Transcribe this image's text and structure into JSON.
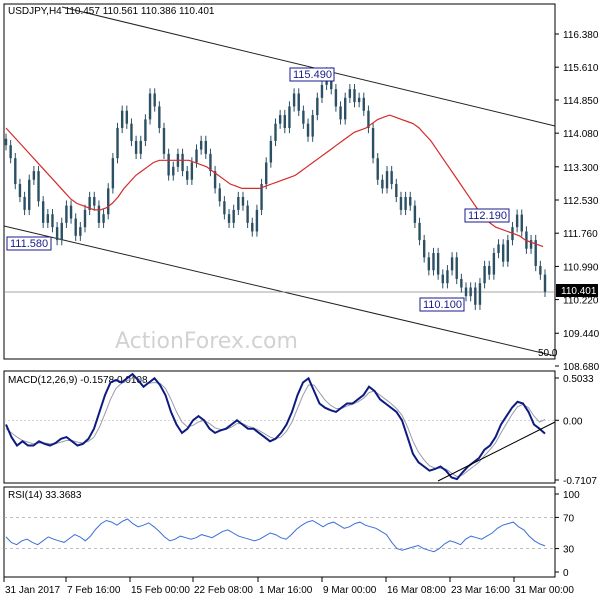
{
  "chart_data": [
    {
      "type": "candlestick",
      "header": "USDJPY,H4  110.457 110.561 110.386 110.401",
      "watermark": "ActionForex.com",
      "ylim": [
        108.68,
        117.0
      ],
      "y_ticks": [
        "116.380",
        "115.610",
        "114.850",
        "114.080",
        "113.300",
        "112.530",
        "111.760",
        "110.990",
        "110.220",
        "109.440",
        "108.680"
      ],
      "x_ticks": [
        "31 Jan 2017",
        "7 Feb 16:00",
        "15 Feb 00:00",
        "22 Feb 08:00",
        "1 Mar 16:00",
        "9 Mar 00:00",
        "16 Mar 08:00",
        "23 Mar 16:00",
        "31 Mar 00:00"
      ],
      "last_price_label": "110.401",
      "annotations": [
        "115.490",
        "112.190",
        "111.580",
        "110.100",
        "50.0"
      ],
      "series": [
        {
          "name": "close",
          "values": [
            113.8,
            113.5,
            112.9,
            112.6,
            112.3,
            113.0,
            113.2,
            112.5,
            112.0,
            112.2,
            111.9,
            111.6,
            112.0,
            112.4,
            112.1,
            111.7,
            111.9,
            112.3,
            112.6,
            112.4,
            112.0,
            112.2,
            112.8,
            113.5,
            114.2,
            114.6,
            114.3,
            113.9,
            113.6,
            113.9,
            114.4,
            115.0,
            114.7,
            114.2,
            113.6,
            113.1,
            113.3,
            113.6,
            113.2,
            113.0,
            113.4,
            113.7,
            113.9,
            113.6,
            113.2,
            112.8,
            112.5,
            112.2,
            112.0,
            112.3,
            112.6,
            112.4,
            112.0,
            111.8,
            112.3,
            112.9,
            113.4,
            113.9,
            114.3,
            114.5,
            114.2,
            114.7,
            115.0,
            114.6,
            114.3,
            114.0,
            114.5,
            114.9,
            115.2,
            115.49,
            115.1,
            114.7,
            114.4,
            114.9,
            115.1,
            114.8,
            114.9,
            114.6,
            114.2,
            113.5,
            113.0,
            112.8,
            113.2,
            112.9,
            112.6,
            112.3,
            112.6,
            112.4,
            112.0,
            111.6,
            111.2,
            110.9,
            111.3,
            110.8,
            110.6,
            110.9,
            111.2,
            110.7,
            110.5,
            110.3,
            110.5,
            110.1,
            110.6,
            111.0,
            110.8,
            111.3,
            111.5,
            111.1,
            111.6,
            111.9,
            112.19,
            111.8,
            111.4,
            111.6,
            111.0,
            110.8,
            110.401
          ]
        },
        {
          "name": "SMA",
          "values": [
            114.2,
            114.05,
            113.9,
            113.75,
            113.6,
            113.45,
            113.3,
            113.15,
            113.0,
            112.85,
            112.7,
            112.55,
            112.45,
            112.4,
            112.35,
            112.3,
            112.3,
            112.35,
            112.45,
            112.6,
            112.8,
            112.95,
            113.1,
            113.2,
            113.3,
            113.4,
            113.45,
            113.45,
            113.45,
            113.45,
            113.45,
            113.45,
            113.4,
            113.35,
            113.3,
            113.2,
            113.1,
            113.0,
            112.9,
            112.85,
            112.8,
            112.8,
            112.8,
            112.8,
            112.85,
            112.9,
            112.95,
            113.0,
            113.05,
            113.1,
            113.2,
            113.3,
            113.4,
            113.5,
            113.6,
            113.7,
            113.8,
            113.9,
            114.0,
            114.1,
            114.15,
            114.2,
            114.3,
            114.4,
            114.45,
            114.5,
            114.45,
            114.4,
            114.35,
            114.3,
            114.2,
            114.05,
            113.9,
            113.7,
            113.5,
            113.3,
            113.1,
            112.9,
            112.7,
            112.5,
            112.3,
            112.15,
            112.0,
            111.9,
            111.85,
            111.8,
            111.75,
            111.7,
            111.6,
            111.55,
            111.5,
            111.45
          ]
        }
      ]
    },
    {
      "type": "line",
      "header": "MACD(12,26,9) -0.1578 0.0108",
      "ylim": [
        -0.7107,
        0.5033
      ],
      "y_ticks": [
        "0.5033",
        "0.00",
        "-0.7107"
      ],
      "series": [
        {
          "name": "MACD",
          "values": [
            -0.05,
            -0.2,
            -0.3,
            -0.25,
            -0.3,
            -0.3,
            -0.25,
            -0.28,
            -0.3,
            -0.27,
            -0.22,
            -0.2,
            -0.25,
            -0.3,
            -0.28,
            -0.22,
            -0.1,
            0.1,
            0.3,
            0.45,
            0.48,
            0.45,
            0.5,
            0.55,
            0.48,
            0.4,
            0.45,
            0.5,
            0.42,
            0.3,
            0.1,
            -0.05,
            -0.15,
            -0.1,
            0.0,
            0.05,
            0.0,
            -0.1,
            -0.15,
            -0.12,
            -0.1,
            -0.05,
            0.0,
            -0.05,
            -0.1,
            -0.1,
            -0.15,
            -0.2,
            -0.25,
            -0.22,
            -0.15,
            -0.05,
            0.1,
            0.3,
            0.45,
            0.5,
            0.35,
            0.2,
            0.15,
            0.12,
            0.1,
            0.15,
            0.2,
            0.2,
            0.25,
            0.3,
            0.4,
            0.35,
            0.25,
            0.2,
            0.15,
            0.1,
            0.0,
            -0.2,
            -0.4,
            -0.5,
            -0.55,
            -0.6,
            -0.58,
            -0.55,
            -0.6,
            -0.68,
            -0.7,
            -0.62,
            -0.55,
            -0.5,
            -0.45,
            -0.35,
            -0.3,
            -0.2,
            -0.05,
            0.05,
            0.15,
            0.22,
            0.2,
            0.1,
            -0.05,
            -0.1,
            -0.158
          ]
        },
        {
          "name": "Signal",
          "values": [
            -0.1,
            -0.15,
            -0.2,
            -0.24,
            -0.26,
            -0.28,
            -0.27,
            -0.27,
            -0.28,
            -0.28,
            -0.26,
            -0.24,
            -0.24,
            -0.26,
            -0.27,
            -0.25,
            -0.2,
            -0.08,
            0.08,
            0.25,
            0.38,
            0.44,
            0.47,
            0.5,
            0.5,
            0.46,
            0.44,
            0.45,
            0.44,
            0.38,
            0.25,
            0.1,
            -0.02,
            -0.08,
            -0.06,
            -0.02,
            0.0,
            -0.04,
            -0.09,
            -0.11,
            -0.11,
            -0.08,
            -0.04,
            -0.04,
            -0.07,
            -0.09,
            -0.12,
            -0.16,
            -0.2,
            -0.22,
            -0.2,
            -0.13,
            -0.02,
            0.14,
            0.3,
            0.42,
            0.42,
            0.33,
            0.24,
            0.18,
            0.14,
            0.14,
            0.17,
            0.19,
            0.22,
            0.26,
            0.33,
            0.35,
            0.3,
            0.25,
            0.2,
            0.14,
            0.06,
            -0.08,
            -0.25,
            -0.38,
            -0.47,
            -0.54,
            -0.57,
            -0.57,
            -0.58,
            -0.63,
            -0.67,
            -0.65,
            -0.6,
            -0.55,
            -0.5,
            -0.42,
            -0.35,
            -0.27,
            -0.15,
            -0.04,
            0.07,
            0.16,
            0.19,
            0.15,
            0.05,
            -0.02,
            0.011
          ]
        }
      ]
    },
    {
      "type": "line",
      "header": "RSI(14) 33.3683",
      "ylim": [
        0,
        100
      ],
      "y_ticks": [
        "100",
        "70",
        "30",
        "0"
      ],
      "levels": [
        70,
        30
      ],
      "series": [
        {
          "name": "RSI",
          "values": [
            45,
            38,
            35,
            40,
            42,
            38,
            35,
            40,
            45,
            42,
            40,
            38,
            43,
            48,
            45,
            40,
            46,
            55,
            62,
            66,
            64,
            60,
            65,
            68,
            62,
            58,
            60,
            63,
            58,
            52,
            45,
            40,
            42,
            46,
            44,
            42,
            44,
            48,
            46,
            44,
            48,
            52,
            54,
            50,
            46,
            44,
            42,
            40,
            42,
            46,
            50,
            48,
            44,
            42,
            48,
            55,
            60,
            64,
            66,
            62,
            58,
            62,
            64,
            60,
            56,
            58,
            62,
            64,
            60,
            58,
            56,
            52,
            48,
            38,
            30,
            28,
            30,
            32,
            34,
            30,
            28,
            26,
            30,
            36,
            40,
            38,
            35,
            42,
            46,
            44,
            42,
            46,
            50,
            56,
            60,
            62,
            64,
            58,
            54,
            46,
            40,
            36,
            33.4
          ]
        }
      ]
    }
  ]
}
